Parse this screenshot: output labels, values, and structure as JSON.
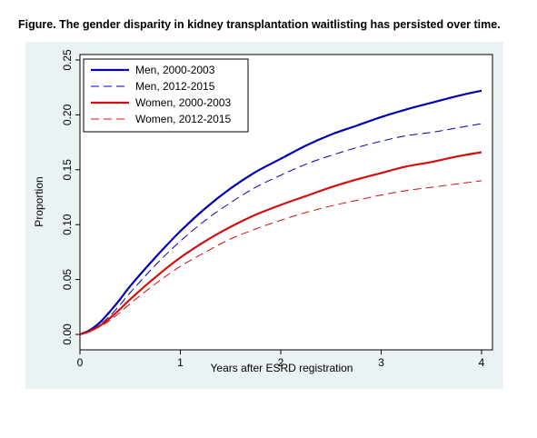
{
  "caption": "Figure. The gender disparity in kidney transplantation waitlisting has persisted over time.",
  "chart_data": {
    "type": "line",
    "title": "",
    "xlabel": "Years after ESRD registration",
    "ylabel": "Proportion",
    "xlim": [
      0,
      4
    ],
    "ylim": [
      0,
      0.25
    ],
    "x_ticks": [
      0,
      1,
      2,
      3,
      4
    ],
    "x_tick_labels": [
      "0",
      "1",
      "2",
      "3",
      "4"
    ],
    "y_ticks": [
      0,
      0.05,
      0.1,
      0.15,
      0.2,
      0.25
    ],
    "y_tick_labels": [
      "0.00",
      "0.05",
      "0.10",
      "0.15",
      "0.20",
      "0.25"
    ],
    "grid": false,
    "legend_position": "top-left",
    "x": [
      0,
      0.1,
      0.2,
      0.3,
      0.4,
      0.5,
      0.75,
      1.0,
      1.25,
      1.5,
      1.75,
      2.0,
      2.25,
      2.5,
      2.75,
      3.0,
      3.25,
      3.5,
      3.75,
      4.0
    ],
    "series": [
      {
        "name": "Men, 2000-2003",
        "color": "#0000b0",
        "style": "solid",
        "values": [
          0,
          0.004,
          0.011,
          0.021,
          0.032,
          0.044,
          0.07,
          0.094,
          0.115,
          0.133,
          0.148,
          0.16,
          0.172,
          0.182,
          0.19,
          0.198,
          0.205,
          0.211,
          0.217,
          0.222
        ]
      },
      {
        "name": "Men, 2012-2015",
        "color": "#0000b0",
        "style": "dashed",
        "values": [
          0,
          0.003,
          0.009,
          0.017,
          0.027,
          0.038,
          0.063,
          0.085,
          0.104,
          0.12,
          0.134,
          0.145,
          0.155,
          0.163,
          0.17,
          0.176,
          0.181,
          0.184,
          0.188,
          0.192
        ]
      },
      {
        "name": "Women, 2000-2003",
        "color": "#d01010",
        "style": "solid",
        "values": [
          0,
          0.003,
          0.008,
          0.015,
          0.023,
          0.032,
          0.052,
          0.07,
          0.085,
          0.098,
          0.109,
          0.118,
          0.126,
          0.134,
          0.141,
          0.147,
          0.153,
          0.157,
          0.162,
          0.166
        ]
      },
      {
        "name": "Women, 2012-2015",
        "color": "#d01010",
        "style": "dashed",
        "values": [
          0,
          0.003,
          0.007,
          0.013,
          0.02,
          0.028,
          0.046,
          0.062,
          0.075,
          0.087,
          0.096,
          0.104,
          0.111,
          0.117,
          0.122,
          0.127,
          0.131,
          0.134,
          0.137,
          0.14
        ]
      }
    ]
  }
}
